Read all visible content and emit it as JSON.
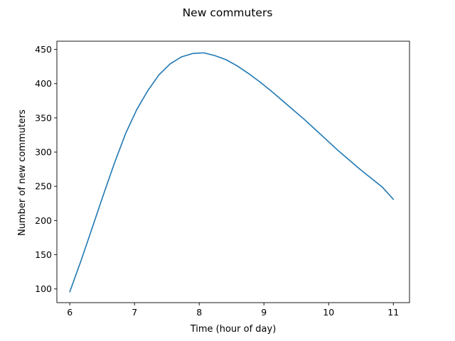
{
  "chart_data": {
    "type": "line",
    "title": "New commuters",
    "xlabel": "Time (hour of day)",
    "ylabel": "Number of new commuters",
    "xlim": [
      5.8,
      11.25
    ],
    "ylim": [
      80,
      462
    ],
    "xticks": [
      6,
      7,
      8,
      9,
      10,
      11
    ],
    "yticks": [
      100,
      150,
      200,
      250,
      300,
      350,
      400,
      450
    ],
    "grid": false,
    "series": [
      {
        "color": "#1f77b4",
        "x": [
          6.0,
          6.172,
          6.345,
          6.517,
          6.69,
          6.862,
          7.034,
          7.207,
          7.379,
          7.552,
          7.724,
          7.897,
          8.069,
          8.241,
          8.414,
          8.586,
          8.759,
          8.931,
          9.103,
          9.276,
          9.448,
          9.621,
          9.793,
          9.966,
          10.138,
          10.31,
          10.483,
          10.655,
          10.828,
          11.0
        ],
        "y": [
          96,
          141,
          189,
          237,
          284,
          327,
          362,
          390,
          413,
          429,
          439,
          444,
          445,
          441,
          435,
          426,
          415,
          403,
          390,
          376,
          362,
          348,
          333,
          318,
          303,
          289,
          275,
          262,
          249,
          231
        ]
      }
    ]
  }
}
